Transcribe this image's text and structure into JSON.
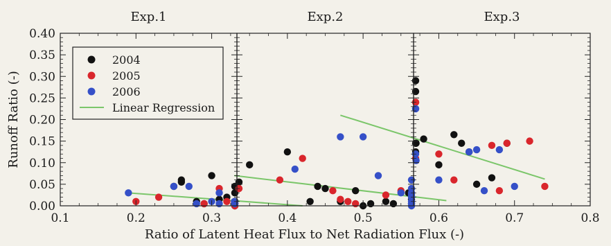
{
  "chart_data": {
    "type": "scatter",
    "ylabel": "Runoff Ratio (-)",
    "xlabel": "Ratio of Latent Heat Flux to Net Radiation Flux (-)",
    "ylim": [
      0,
      0.4
    ],
    "yticks": [
      "0.00",
      "0.05",
      "0.10",
      "0.15",
      "0.20",
      "0.25",
      "0.30",
      "0.35",
      "0.40"
    ],
    "xlim": [
      0.1,
      0.8
    ],
    "xticks": [
      "0.1",
      "0.2",
      "0.3",
      "0.4",
      "0.5",
      "0.6",
      "0.7",
      "0.8"
    ],
    "panel_titles": [
      "Exp.1",
      "Exp.2",
      "Exp.3"
    ],
    "legend": {
      "placement": "top-left of Exp.1 panel",
      "entries": [
        {
          "label": "2004",
          "kind": "marker",
          "color": "#111111"
        },
        {
          "label": "2005",
          "kind": "marker",
          "color": "#d9262c"
        },
        {
          "label": "2006",
          "kind": "marker",
          "color": "#3550c8"
        },
        {
          "label": "Linear Regression",
          "kind": "line",
          "color": "#7bc66a"
        }
      ]
    },
    "series_colors": {
      "2004": "#111111",
      "2005": "#d9262c",
      "2006": "#3550c8",
      "regression": "#7bc66a"
    },
    "panels": [
      {
        "title": "Exp.1",
        "x_range": [
          0.1,
          0.4
        ],
        "regression": [
          [
            0.19,
            0.03
          ],
          [
            0.42,
            0.0
          ]
        ],
        "series": {
          "2004": [
            [
              0.25,
              0.045
            ],
            [
              0.26,
              0.055
            ],
            [
              0.26,
              0.06
            ],
            [
              0.28,
              0.01
            ],
            [
              0.29,
              0.005
            ],
            [
              0.3,
              0.07
            ],
            [
              0.31,
              0.015
            ],
            [
              0.32,
              0.02
            ],
            [
              0.33,
              0.005
            ],
            [
              0.34,
              0.045
            ],
            [
              0.35,
              0.03
            ],
            [
              0.36,
              0.01
            ],
            [
              0.37,
              0.0
            ],
            [
              0.38,
              0.005
            ],
            [
              0.41,
              0.005
            ],
            [
              0.43,
              0.01
            ]
          ],
          "2005": [
            [
              0.2,
              0.01
            ],
            [
              0.23,
              0.02
            ],
            [
              0.29,
              0.005
            ],
            [
              0.31,
              0.04
            ],
            [
              0.32,
              0.01
            ],
            [
              0.34,
              0.0
            ],
            [
              0.36,
              0.005
            ]
          ],
          "2006": [
            [
              0.19,
              0.03
            ],
            [
              0.25,
              0.045
            ],
            [
              0.27,
              0.045
            ],
            [
              0.28,
              0.005
            ],
            [
              0.3,
              0.01
            ],
            [
              0.31,
              0.03
            ],
            [
              0.31,
              0.005
            ],
            [
              0.33,
              0.01
            ],
            [
              0.35,
              0.005
            ],
            [
              0.38,
              0.005
            ]
          ]
        }
      },
      {
        "title": "Exp.2",
        "x_range": [
          0.3,
          0.6
        ],
        "regression": [
          [
            0.33,
            0.07
          ],
          [
            0.61,
            0.012
          ]
        ],
        "series": {
          "2004": [
            [
              0.33,
              0.055
            ],
            [
              0.35,
              0.095
            ],
            [
              0.4,
              0.125
            ],
            [
              0.43,
              0.01
            ],
            [
              0.44,
              0.045
            ],
            [
              0.45,
              0.04
            ],
            [
              0.47,
              0.01
            ],
            [
              0.49,
              0.035
            ],
            [
              0.5,
              0.0
            ],
            [
              0.51,
              0.005
            ],
            [
              0.53,
              0.01
            ],
            [
              0.54,
              0.005
            ],
            [
              0.56,
              0.03
            ],
            [
              0.58,
              0.005
            ],
            [
              0.59,
              0.015
            ]
          ],
          "2005": [
            [
              0.33,
              0.04
            ],
            [
              0.39,
              0.06
            ],
            [
              0.42,
              0.11
            ],
            [
              0.46,
              0.035
            ],
            [
              0.47,
              0.015
            ],
            [
              0.48,
              0.01
            ],
            [
              0.49,
              0.005
            ],
            [
              0.53,
              0.025
            ],
            [
              0.55,
              0.035
            ]
          ],
          "2006": [
            [
              0.41,
              0.085
            ],
            [
              0.47,
              0.16
            ],
            [
              0.5,
              0.16
            ],
            [
              0.52,
              0.07
            ],
            [
              0.55,
              0.03
            ],
            [
              0.57,
              0.025
            ],
            [
              0.59,
              0.03
            ],
            [
              0.62,
              0.0
            ],
            [
              0.64,
              0.04
            ],
            [
              0.65,
              0.06
            ],
            [
              0.66,
              0.005
            ],
            [
              0.67,
              0.02
            ],
            [
              0.68,
              0.01
            ]
          ]
        }
      },
      {
        "title": "Exp.3",
        "x_range": [
          0.4,
          0.8
        ],
        "regression": [
          [
            0.47,
            0.21
          ],
          [
            0.74,
            0.062
          ]
        ],
        "series": {
          "2004": [
            [
              0.47,
              0.29
            ],
            [
              0.48,
              0.145
            ],
            [
              0.51,
              0.265
            ],
            [
              0.55,
              0.125
            ],
            [
              0.57,
              0.145
            ],
            [
              0.58,
              0.155
            ],
            [
              0.6,
              0.095
            ],
            [
              0.62,
              0.165
            ],
            [
              0.63,
              0.145
            ],
            [
              0.64,
              0.125
            ],
            [
              0.65,
              0.05
            ],
            [
              0.67,
              0.065
            ],
            [
              0.69,
              0.145
            ]
          ],
          "2005": [
            [
              0.52,
              0.11
            ],
            [
              0.55,
              0.24
            ],
            [
              0.56,
              0.24
            ],
            [
              0.6,
              0.12
            ],
            [
              0.62,
              0.06
            ],
            [
              0.67,
              0.14
            ],
            [
              0.69,
              0.145
            ],
            [
              0.72,
              0.15
            ],
            [
              0.74,
              0.045
            ],
            [
              0.68,
              0.035
            ]
          ],
          "2006": [
            [
              0.48,
              0.12
            ],
            [
              0.5,
              0.225
            ],
            [
              0.54,
              0.225
            ],
            [
              0.57,
              0.105
            ],
            [
              0.6,
              0.06
            ],
            [
              0.64,
              0.125
            ],
            [
              0.65,
              0.13
            ],
            [
              0.66,
              0.035
            ],
            [
              0.68,
              0.13
            ],
            [
              0.7,
              0.045
            ]
          ]
        }
      }
    ]
  }
}
